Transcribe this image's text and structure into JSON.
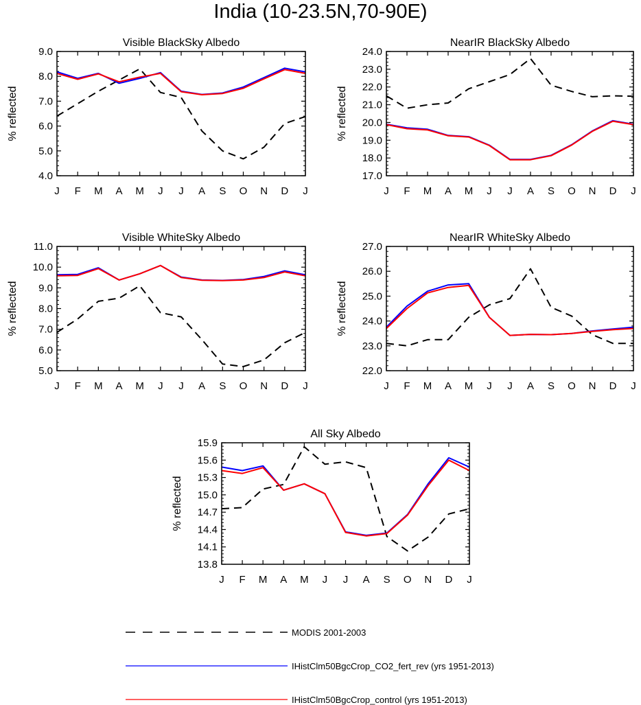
{
  "title": "India (10-23.5N,70-90E)",
  "months": [
    "J",
    "F",
    "M",
    "A",
    "M",
    "J",
    "J",
    "A",
    "S",
    "O",
    "N",
    "D",
    "J"
  ],
  "legend": [
    {
      "label": "MODIS 2001-2003",
      "color": "#000000",
      "dashed": true
    },
    {
      "label": "IHistClm50BgcCrop_CO2_fert_rev (yrs 1951-2013)",
      "color": "#0000ff",
      "dashed": false
    },
    {
      "label": "IHistClm50BgcCrop_control (yrs 1951-2013)",
      "color": "#ff0000",
      "dashed": false
    }
  ],
  "chart_data": [
    {
      "type": "line",
      "title": "Visible BlackSky Albedo",
      "ylabel": "% reflected",
      "ylim": [
        4.0,
        9.0
      ],
      "yticks": [
        "4.0",
        "5.0",
        "6.0",
        "7.0",
        "8.0",
        "9.0"
      ],
      "categories": [
        "J",
        "F",
        "M",
        "A",
        "M",
        "J",
        "J",
        "A",
        "S",
        "O",
        "N",
        "D",
        "J"
      ],
      "series": [
        {
          "name": "MODIS 2001-2003",
          "values": [
            6.4,
            6.9,
            7.4,
            7.85,
            8.3,
            7.35,
            7.15,
            5.8,
            5.0,
            4.68,
            5.15,
            6.1,
            6.38
          ]
        },
        {
          "name": "IHistClm50BgcCrop_CO2_fert_rev (yrs 1951-2013)",
          "values": [
            8.18,
            7.92,
            8.12,
            7.72,
            7.92,
            8.15,
            7.4,
            7.27,
            7.33,
            7.57,
            7.95,
            8.33,
            8.18
          ]
        },
        {
          "name": "IHistClm50BgcCrop_control (yrs 1951-2013)",
          "values": [
            8.12,
            7.88,
            8.1,
            7.78,
            7.97,
            8.12,
            7.38,
            7.26,
            7.31,
            7.52,
            7.9,
            8.27,
            8.12
          ]
        }
      ]
    },
    {
      "type": "line",
      "title": "NearIR BlackSky Albedo",
      "ylabel": "% reflected",
      "ylim": [
        17.0,
        24.0
      ],
      "yticks": [
        "17.0",
        "18.0",
        "19.0",
        "20.0",
        "21.0",
        "22.0",
        "23.0",
        "24.0"
      ],
      "categories": [
        "J",
        "F",
        "M",
        "A",
        "M",
        "J",
        "J",
        "A",
        "S",
        "O",
        "N",
        "D",
        "J"
      ],
      "series": [
        {
          "name": "MODIS 2001-2003",
          "values": [
            21.5,
            20.8,
            21.0,
            21.1,
            21.9,
            22.3,
            22.7,
            23.6,
            22.1,
            21.75,
            21.45,
            21.5,
            21.48
          ]
        },
        {
          "name": "IHistClm50BgcCrop_CO2_fert_rev (yrs 1951-2013)",
          "values": [
            19.9,
            19.7,
            19.62,
            19.27,
            19.2,
            18.72,
            17.92,
            17.92,
            18.15,
            18.75,
            19.52,
            20.1,
            19.9
          ]
        },
        {
          "name": "IHistClm50BgcCrop_control (yrs 1951-2013)",
          "values": [
            19.88,
            19.65,
            19.58,
            19.25,
            19.18,
            18.7,
            17.9,
            17.9,
            18.13,
            18.73,
            19.5,
            20.07,
            19.88
          ]
        }
      ]
    },
    {
      "type": "line",
      "title": "Visible WhiteSky Albedo",
      "ylabel": "% reflected",
      "ylim": [
        5.0,
        11.0
      ],
      "yticks": [
        "5.0",
        "6.0",
        "7.0",
        "8.0",
        "9.0",
        "10.0",
        "11.0"
      ],
      "categories": [
        "J",
        "F",
        "M",
        "A",
        "M",
        "J",
        "J",
        "A",
        "S",
        "O",
        "N",
        "D",
        "J"
      ],
      "series": [
        {
          "name": "MODIS 2001-2003",
          "values": [
            6.85,
            7.5,
            8.35,
            8.5,
            9.1,
            7.8,
            7.6,
            6.5,
            5.32,
            5.2,
            5.52,
            6.35,
            6.85
          ]
        },
        {
          "name": "IHistClm50BgcCrop_CO2_fert_rev (yrs 1951-2013)",
          "values": [
            9.63,
            9.65,
            9.97,
            9.38,
            9.68,
            10.08,
            9.52,
            9.38,
            9.36,
            9.4,
            9.55,
            9.82,
            9.63
          ]
        },
        {
          "name": "IHistClm50BgcCrop_control (yrs 1951-2013)",
          "values": [
            9.58,
            9.6,
            9.93,
            9.38,
            9.68,
            10.08,
            9.5,
            9.37,
            9.35,
            9.38,
            9.5,
            9.77,
            9.58
          ]
        }
      ]
    },
    {
      "type": "line",
      "title": "NearIR WhiteSky Albedo",
      "ylabel": "% reflected",
      "ylim": [
        22.0,
        27.0
      ],
      "yticks": [
        "22.0",
        "23.0",
        "24.0",
        "25.0",
        "26.0",
        "27.0"
      ],
      "categories": [
        "J",
        "F",
        "M",
        "A",
        "M",
        "J",
        "J",
        "A",
        "S",
        "O",
        "N",
        "D",
        "J"
      ],
      "series": [
        {
          "name": "MODIS 2001-2003",
          "values": [
            23.1,
            23.0,
            23.25,
            23.25,
            24.15,
            24.65,
            24.9,
            26.1,
            24.55,
            24.2,
            23.45,
            23.1,
            23.1
          ]
        },
        {
          "name": "IHistClm50BgcCrop_CO2_fert_rev (yrs 1951-2013)",
          "values": [
            23.75,
            24.6,
            25.2,
            25.45,
            25.5,
            24.15,
            23.42,
            23.46,
            23.45,
            23.5,
            23.6,
            23.68,
            23.75
          ]
        },
        {
          "name": "IHistClm50BgcCrop_control (yrs 1951-2013)",
          "values": [
            23.7,
            24.5,
            25.13,
            25.35,
            25.43,
            24.15,
            23.42,
            23.46,
            23.45,
            23.5,
            23.58,
            23.65,
            23.7
          ]
        }
      ]
    },
    {
      "type": "line",
      "title": "All Sky Albedo",
      "ylabel": "% reflected",
      "ylim": [
        13.8,
        15.9
      ],
      "yticks": [
        "13.8",
        "14.1",
        "14.4",
        "14.7",
        "15.0",
        "15.3",
        "15.6",
        "15.9"
      ],
      "categories": [
        "J",
        "F",
        "M",
        "A",
        "M",
        "J",
        "J",
        "A",
        "S",
        "O",
        "N",
        "D",
        "J"
      ],
      "series": [
        {
          "name": "MODIS 2001-2003",
          "values": [
            14.76,
            14.78,
            15.1,
            15.18,
            15.83,
            15.53,
            15.57,
            15.47,
            14.28,
            14.03,
            14.27,
            14.67,
            14.76
          ]
        },
        {
          "name": "IHistClm50BgcCrop_CO2_fert_rev (yrs 1951-2013)",
          "values": [
            15.48,
            15.42,
            15.5,
            15.08,
            15.19,
            15.02,
            14.36,
            14.3,
            14.34,
            14.66,
            15.19,
            15.64,
            15.48
          ]
        },
        {
          "name": "IHistClm50BgcCrop_control (yrs 1951-2013)",
          "values": [
            15.42,
            15.37,
            15.47,
            15.08,
            15.19,
            15.02,
            14.35,
            14.29,
            14.33,
            14.65,
            15.16,
            15.6,
            15.42
          ]
        }
      ]
    }
  ]
}
